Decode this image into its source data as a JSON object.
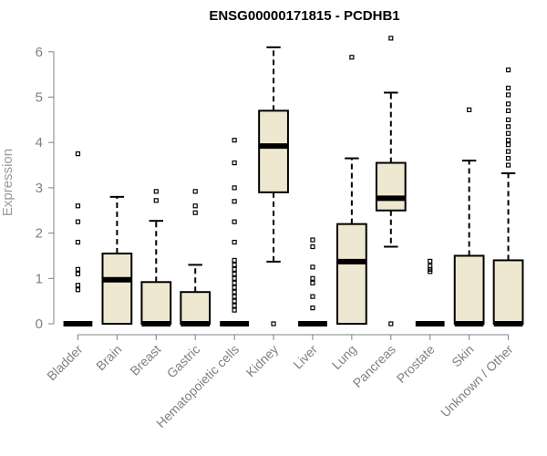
{
  "chart_data": {
    "type": "boxplot",
    "title": "ENSG00000171815 - PCDHB1",
    "ylabel": "Expression",
    "xlabel": "",
    "ylim": [
      0,
      6.3
    ],
    "yticks": [
      0,
      1,
      2,
      3,
      4,
      5,
      6
    ],
    "box_color": "#efe8d0",
    "grid": false,
    "categories": [
      "Bladder",
      "Brain",
      "Breast",
      "Gastric",
      "Hematopoietic cells",
      "Kidney",
      "Liver",
      "Lung",
      "Pancreas",
      "Prostate",
      "Skin",
      "Unknown / Other"
    ],
    "series": [
      {
        "q1": 0,
        "median": 0,
        "q3": 0,
        "whisker_low": 0,
        "whisker_high": 0,
        "outliers": [
          3.75,
          2.6,
          2.25,
          1.8,
          1.2,
          1.1,
          0.85,
          0.75
        ]
      },
      {
        "q1": 0,
        "median": 0.97,
        "q3": 1.55,
        "whisker_low": 0,
        "whisker_high": 2.8,
        "outliers": []
      },
      {
        "q1": 0,
        "median": 0,
        "q3": 0.92,
        "whisker_low": 0,
        "whisker_high": 2.27,
        "outliers": [
          2.92,
          2.72
        ]
      },
      {
        "q1": 0,
        "median": 0,
        "q3": 0.7,
        "whisker_low": 0,
        "whisker_high": 1.3,
        "outliers": [
          2.92,
          2.6,
          2.45
        ]
      },
      {
        "q1": 0,
        "median": 0,
        "q3": 0,
        "whisker_low": 0,
        "whisker_high": 0,
        "outliers": [
          4.05,
          3.55,
          3.0,
          2.7,
          2.25,
          1.8,
          1.4,
          1.3,
          1.2,
          1.1,
          1.0,
          0.9,
          0.8,
          0.7,
          0.6,
          0.5,
          0.4,
          0.3
        ]
      },
      {
        "q1": 2.9,
        "median": 3.92,
        "q3": 4.7,
        "whisker_low": 1.37,
        "whisker_high": 6.1,
        "outliers": [
          0
        ]
      },
      {
        "q1": 0,
        "median": 0,
        "q3": 0,
        "whisker_low": 0,
        "whisker_high": 0,
        "outliers": [
          1.85,
          1.7,
          1.25,
          1.0,
          0.9,
          0.6,
          0.35
        ]
      },
      {
        "q1": 0,
        "median": 1.37,
        "q3": 2.2,
        "whisker_low": 0,
        "whisker_high": 3.65,
        "outliers": [
          5.88
        ]
      },
      {
        "q1": 2.5,
        "median": 2.77,
        "q3": 3.55,
        "whisker_low": 1.7,
        "whisker_high": 5.1,
        "outliers": [
          6.3,
          0
        ]
      },
      {
        "q1": 0,
        "median": 0,
        "q3": 0,
        "whisker_low": 0,
        "whisker_high": 0,
        "outliers": [
          1.38,
          1.27,
          1.2,
          1.15
        ]
      },
      {
        "q1": 0,
        "median": 0,
        "q3": 1.5,
        "whisker_low": 0,
        "whisker_high": 3.6,
        "outliers": [
          4.72
        ]
      },
      {
        "q1": 0,
        "median": 0,
        "q3": 1.4,
        "whisker_low": 0,
        "whisker_high": 3.32,
        "outliers": [
          5.6,
          5.2,
          5.05,
          4.85,
          4.7,
          4.5,
          4.35,
          4.2,
          4.05,
          3.95,
          3.8,
          3.65,
          3.5
        ]
      }
    ]
  }
}
